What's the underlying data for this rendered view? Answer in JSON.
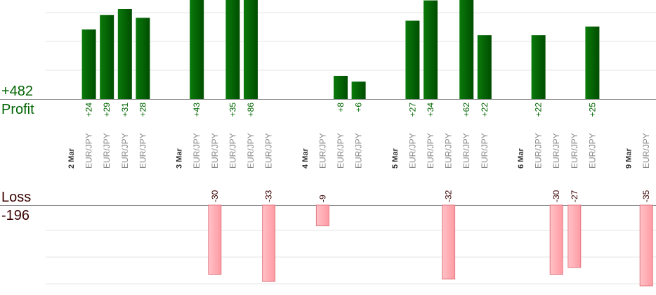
{
  "summary": {
    "profit_total": "+482",
    "profit_label": "Profit",
    "loss_label": "Loss",
    "loss_total": "-196"
  },
  "colors": {
    "profit_bar": "#006400",
    "profit_text": "#006400",
    "loss_bar": "#ffb3b8",
    "loss_bar_edge": "#e07a84",
    "loss_text": "#3a0000",
    "day_label": "#333333",
    "pair_label": "#888888",
    "gridline": "#e6e6e6",
    "baseline": "#888888"
  },
  "chart_data": {
    "type": "bar",
    "title": "",
    "xlabel": "",
    "ylabel": "",
    "grid": true,
    "profit_ylim": [
      0,
      35
    ],
    "loss_ylim": [
      0,
      35
    ],
    "categories": [
      {
        "label": "2 Mar",
        "kind": "day"
      },
      {
        "label": "EUR/JPY",
        "kind": "pair",
        "profit": 24
      },
      {
        "label": "EUR/JPY",
        "kind": "pair",
        "profit": 29
      },
      {
        "label": "EUR/JPY",
        "kind": "pair",
        "profit": 31
      },
      {
        "label": "EUR/JPY",
        "kind": "pair",
        "profit": 28
      },
      {
        "label": "",
        "kind": "gap"
      },
      {
        "label": "3 Mar",
        "kind": "day"
      },
      {
        "label": "EUR/JPY",
        "kind": "pair",
        "profit": 43
      },
      {
        "label": "EUR/JPY",
        "kind": "pair",
        "loss": -30
      },
      {
        "label": "EUR/JPY",
        "kind": "pair",
        "profit": 35
      },
      {
        "label": "EUR/JPY",
        "kind": "pair",
        "profit": 86
      },
      {
        "label": "EUR/JPY",
        "kind": "pair",
        "loss": -33
      },
      {
        "label": "",
        "kind": "gap"
      },
      {
        "label": "4 Mar",
        "kind": "day"
      },
      {
        "label": "EUR/JPY",
        "kind": "pair",
        "loss": -9
      },
      {
        "label": "EUR/JPY",
        "kind": "pair",
        "profit": 8
      },
      {
        "label": "EUR/JPY",
        "kind": "pair",
        "profit": 6
      },
      {
        "label": "",
        "kind": "gap"
      },
      {
        "label": "5 Mar",
        "kind": "day"
      },
      {
        "label": "EUR/JPY",
        "kind": "pair",
        "profit": 27
      },
      {
        "label": "EUR/JPY",
        "kind": "pair",
        "profit": 34
      },
      {
        "label": "EUR/JPY",
        "kind": "pair",
        "loss": -32
      },
      {
        "label": "EUR/JPY",
        "kind": "pair",
        "profit": 62
      },
      {
        "label": "EUR/JPY",
        "kind": "pair",
        "profit": 22
      },
      {
        "label": "",
        "kind": "gap"
      },
      {
        "label": "6 Mar",
        "kind": "day"
      },
      {
        "label": "EUR/JPY",
        "kind": "pair",
        "profit": 22
      },
      {
        "label": "EUR/JPY",
        "kind": "pair",
        "loss": -30
      },
      {
        "label": "EUR/JPY",
        "kind": "pair",
        "loss": -27
      },
      {
        "label": "EUR/JPY",
        "kind": "pair",
        "profit": 25
      },
      {
        "label": "",
        "kind": "gap"
      },
      {
        "label": "9 Mar",
        "kind": "day"
      },
      {
        "label": "EUR/JPY",
        "kind": "pair",
        "loss": -35
      }
    ]
  }
}
